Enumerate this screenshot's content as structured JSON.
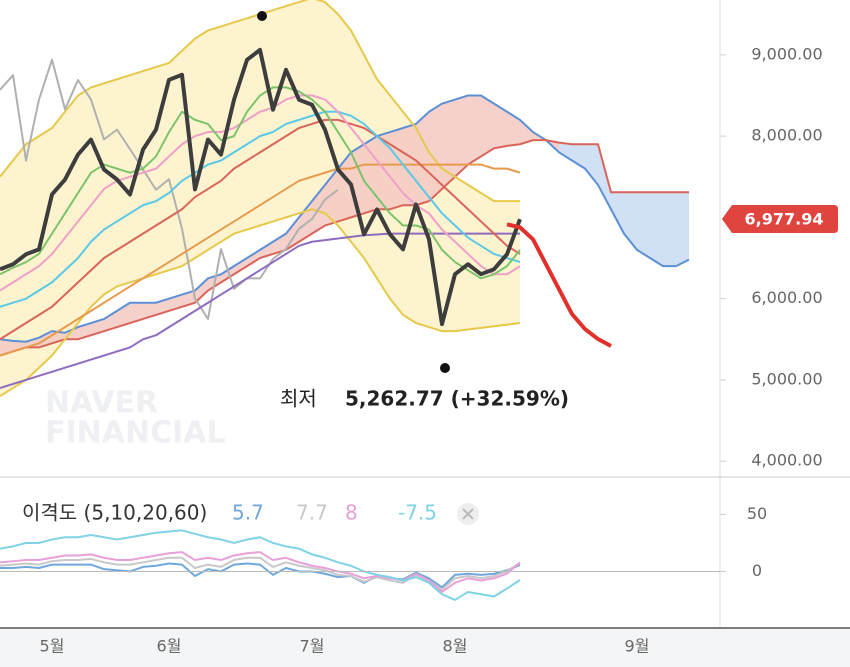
{
  "chart_data": [
    {
      "type": "line",
      "categories": [
        null,
        null,
        null,
        null,
        "5월",
        null,
        null,
        null,
        null,
        null,
        null,
        null,
        null,
        "6월",
        null,
        null,
        null,
        null,
        null,
        null,
        null,
        null,
        null,
        null,
        "7월",
        null,
        null,
        null,
        null,
        null,
        null,
        null,
        null,
        null,
        null,
        "8월",
        null,
        null,
        null,
        null,
        null,
        null,
        null,
        null,
        null,
        null,
        null,
        null,
        null,
        "9월",
        null,
        null,
        null,
        null,
        null,
        null
      ],
      "ylim": [
        3830,
        9675
      ],
      "yticks": [
        {
          "value": 4000,
          "label": "4,000.00"
        },
        {
          "value": 5000,
          "label": "5,000.00"
        },
        {
          "value": 6000,
          "label": "6,000.00"
        },
        {
          "value": 8000,
          "label": "8,000.00"
        },
        {
          "value": 9000,
          "label": "9,000.00"
        }
      ],
      "bollinger": {
        "color": "#e6c94a",
        "fill": "#fdf4cf",
        "upper": [
          7500,
          7700,
          7900,
          8000,
          8100,
          8300,
          8500,
          8600,
          8650,
          8700,
          8750,
          8800,
          8850,
          8900,
          9050,
          9200,
          9300,
          9350,
          9400,
          9450,
          9500,
          9550,
          9600,
          9650,
          9700,
          9650,
          9500,
          9300,
          9000,
          8700,
          8500,
          8300,
          8100,
          7800,
          7600,
          7500,
          7400,
          7300,
          7200,
          7200,
          7200,
          null,
          null,
          null,
          null,
          null,
          null,
          null,
          null,
          null,
          null,
          null,
          null,
          null,
          null,
          null
        ],
        "lower": [
          4800,
          4900,
          5000,
          5150,
          5300,
          5500,
          5700,
          5900,
          6050,
          6150,
          6200,
          6250,
          6300,
          6350,
          6400,
          6500,
          6600,
          6700,
          6800,
          6850,
          6900,
          6950,
          7000,
          7050,
          7100,
          7050,
          6900,
          6700,
          6500,
          6250,
          6000,
          5800,
          5700,
          5650,
          5600,
          5600,
          5620,
          5640,
          5660,
          5680,
          5700,
          null,
          null,
          null,
          null,
          null,
          null,
          null,
          null,
          null,
          null,
          null,
          null,
          null,
          null,
          null
        ]
      },
      "cloud": {
        "up_color": "#f4c9c3",
        "down_color": "#c8dcf5",
        "span_a": {
          "color": "#5b8fd6",
          "values": [
            5500,
            5480,
            5470,
            5520,
            5600,
            5580,
            5650,
            5700,
            5750,
            5850,
            5950,
            5950,
            5950,
            6000,
            6050,
            6100,
            6250,
            6300,
            6400,
            6500,
            6600,
            6700,
            6800,
            7000,
            7200,
            7400,
            7600,
            7800,
            7900,
            8000,
            8050,
            8100,
            8150,
            8300,
            8400,
            8450,
            8500,
            8500,
            8400,
            8300,
            8200,
            8050,
            7950,
            7800,
            7700,
            7600,
            7400,
            7100,
            6800,
            6600,
            6500,
            6400,
            6400,
            6480,
            null,
            null
          ]
        },
        "span_b": {
          "color": "#d9645a",
          "values": [
            5300,
            5350,
            5400,
            5400,
            5450,
            5500,
            5500,
            5550,
            5600,
            5650,
            5700,
            5750,
            5800,
            5850,
            5900,
            5950,
            6100,
            6200,
            6300,
            6400,
            6500,
            6550,
            6600,
            6700,
            6800,
            6900,
            6950,
            7000,
            7050,
            7100,
            7100,
            7150,
            7150,
            7200,
            7350,
            7500,
            7650,
            7750,
            7850,
            7880,
            7900,
            7950,
            7950,
            7920,
            7900,
            7900,
            7900,
            7310,
            7310,
            7310,
            7310,
            7310,
            7310,
            7310,
            null,
            null
          ]
        }
      },
      "series": [
        {
          "color": "#b0b0b0",
          "width": 2,
          "values": [
            8570,
            8750,
            7700,
            8450,
            8940,
            8330,
            8690,
            8450,
            7960,
            8080,
            7840,
            7590,
            7340,
            7470,
            6860,
            6000,
            5750,
            6610,
            6120,
            6250,
            6250,
            6490,
            6610,
            6860,
            6980,
            7220,
            7340,
            null,
            null,
            null,
            null,
            null,
            null,
            null,
            null,
            null,
            null,
            null,
            null,
            null,
            null,
            null,
            null,
            null,
            null,
            null,
            null,
            null,
            null,
            null,
            null,
            null,
            null,
            null,
            null,
            null
          ]
        },
        {
          "color": "#8e6bbf",
          "width": 2,
          "values": [
            4900,
            4950,
            5000,
            5050,
            5100,
            5150,
            5200,
            5250,
            5300,
            5350,
            5400,
            5500,
            5550,
            5650,
            5750,
            5850,
            5950,
            6050,
            6150,
            6250,
            6350,
            6450,
            6550,
            6650,
            6700,
            6720,
            6740,
            6760,
            6780,
            6790,
            6800,
            6800,
            6800,
            6800,
            6800,
            6800,
            6800,
            6800,
            6800,
            6800,
            6800,
            null,
            null,
            null,
            null,
            null,
            null,
            null,
            null,
            null,
            null,
            null,
            null,
            null,
            null,
            null
          ]
        },
        {
          "color": "#e89a4c",
          "width": 2,
          "values": [
            5300,
            5350,
            5400,
            5450,
            5550,
            5650,
            5750,
            5850,
            5950,
            6050,
            6150,
            6250,
            6350,
            6450,
            6550,
            6650,
            6750,
            6850,
            6950,
            7050,
            7150,
            7250,
            7350,
            7450,
            7500,
            7550,
            7600,
            7600,
            7650,
            7650,
            7650,
            7650,
            7650,
            7650,
            7650,
            7650,
            7650,
            7650,
            7600,
            7600,
            7550,
            null,
            null,
            null,
            null,
            null,
            null,
            null,
            null,
            null,
            null,
            null,
            null,
            null,
            null,
            null
          ]
        },
        {
          "color": "#d9645a",
          "width": 2,
          "values": [
            5500,
            5600,
            5700,
            5800,
            5900,
            6050,
            6200,
            6350,
            6500,
            6600,
            6700,
            6800,
            6900,
            7000,
            7100,
            7250,
            7350,
            7450,
            7600,
            7700,
            7800,
            7900,
            8000,
            8100,
            8150,
            8200,
            8200,
            8150,
            8100,
            8000,
            7900,
            7800,
            7700,
            7550,
            7400,
            7250,
            7100,
            6950,
            6800,
            6650,
            6550,
            null,
            null,
            null,
            null,
            null,
            null,
            null,
            null,
            null,
            null,
            null,
            null,
            null,
            null,
            null
          ]
        },
        {
          "color": "#5bc8e8",
          "width": 2,
          "values": [
            5900,
            5950,
            6000,
            6100,
            6200,
            6350,
            6500,
            6700,
            6850,
            6950,
            7050,
            7150,
            7200,
            7300,
            7450,
            7550,
            7650,
            7700,
            7800,
            7900,
            8000,
            8050,
            8150,
            8200,
            8250,
            8300,
            8300,
            8250,
            8150,
            8000,
            7850,
            7650,
            7450,
            7250,
            7050,
            6900,
            6750,
            6650,
            6550,
            6500,
            6450,
            null,
            null,
            null,
            null,
            null,
            null,
            null,
            null,
            null,
            null,
            null,
            null,
            null,
            null,
            null
          ]
        },
        {
          "color": "#f0a0c8",
          "width": 2,
          "values": [
            6100,
            6200,
            6300,
            6400,
            6550,
            6750,
            6950,
            7150,
            7350,
            7450,
            7500,
            7550,
            7600,
            7750,
            7900,
            8000,
            8050,
            8050,
            8100,
            8200,
            8300,
            8350,
            8450,
            8500,
            8500,
            8450,
            8300,
            8100,
            7900,
            7700,
            7500,
            7300,
            7150,
            7050,
            6850,
            6700,
            6550,
            6400,
            6300,
            6300,
            6400,
            null,
            null,
            null,
            null,
            null,
            null,
            null,
            null,
            null,
            null,
            null,
            null,
            null,
            null,
            null
          ]
        },
        {
          "color": "#7cc36b",
          "width": 2,
          "values": [
            6300,
            6380,
            6450,
            6550,
            6800,
            7050,
            7300,
            7550,
            7650,
            7600,
            7550,
            7600,
            7750,
            8050,
            8300,
            8200,
            8150,
            7950,
            8000,
            8300,
            8500,
            8600,
            8600,
            8550,
            8450,
            8300,
            8050,
            7800,
            7450,
            7250,
            7050,
            6900,
            6900,
            6850,
            6600,
            6450,
            6350,
            6250,
            6300,
            6400,
            6600,
            null,
            null,
            null,
            null,
            null,
            null,
            null,
            null,
            null,
            null,
            null,
            null,
            null,
            null,
            null
          ]
        },
        {
          "color": "#3d3d3d",
          "width": 4,
          "values": [
            6362,
            6423,
            6546,
            6607,
            7282,
            7466,
            7773,
            7957,
            7589,
            7466,
            7282,
            7834,
            8080,
            8693,
            8755,
            7344,
            7957,
            7773,
            8448,
            8939,
            9061,
            8325,
            8816,
            8448,
            8386,
            8080,
            7589,
            7405,
            6791,
            7098,
            6791,
            6607,
            7159,
            6730,
            5687,
            6301,
            6423,
            6301,
            6362,
            6546,
            6978,
            null,
            null,
            null,
            null,
            null,
            null,
            null,
            null,
            null,
            null,
            null,
            null,
            null,
            null,
            null
          ]
        },
        {
          "color": "#e0312b",
          "width": 4,
          "values": [
            null,
            null,
            null,
            null,
            null,
            null,
            null,
            null,
            null,
            null,
            null,
            null,
            null,
            null,
            null,
            null,
            null,
            null,
            null,
            null,
            null,
            null,
            null,
            null,
            null,
            null,
            null,
            null,
            null,
            null,
            null,
            null,
            null,
            null,
            null,
            null,
            null,
            null,
            null,
            6914,
            6877,
            6730,
            6423,
            6117,
            5810,
            5626,
            5503,
            5417,
            null,
            null,
            null,
            null,
            null,
            null,
            null,
            null
          ]
        }
      ],
      "last_price_label": "6,977.94",
      "last_price_color": "#e0443e",
      "annotation": {
        "label": "최저",
        "text": "5,262.77 (+32.59%)"
      },
      "watermark": [
        "NAVER",
        "FINANCIAL"
      ]
    },
    {
      "type": "line",
      "title": "이격도 (5,10,20,60)",
      "ylim": [
        -47,
        82
      ],
      "yticks": [
        0,
        50
      ],
      "series": [
        {
          "color": "#6fa8dc",
          "values": [
            3,
            3,
            4,
            3,
            6,
            6,
            6,
            6,
            2,
            1,
            0,
            4,
            5,
            7,
            6,
            -4,
            2,
            0,
            6,
            7,
            6,
            -3,
            3,
            0,
            0,
            -2,
            -5,
            -4,
            -10,
            -4,
            -6,
            -7,
            -1,
            -6,
            -14,
            -3,
            -2,
            -3,
            -2,
            1,
            5.7
          ]
        },
        {
          "color": "#c8c8c8",
          "values": [
            5,
            6,
            7,
            6,
            9,
            10,
            10,
            11,
            8,
            6,
            6,
            8,
            10,
            12,
            12,
            3,
            6,
            4,
            10,
            12,
            12,
            4,
            8,
            5,
            3,
            1,
            -3,
            -4,
            -9,
            -5,
            -8,
            -10,
            -3,
            -8,
            -16,
            -6,
            -4,
            -6,
            -4,
            0,
            7.7
          ]
        },
        {
          "color": "#e8a0d8",
          "values": [
            8,
            9,
            10,
            10,
            12,
            14,
            14,
            15,
            12,
            10,
            10,
            12,
            14,
            16,
            17,
            10,
            12,
            10,
            14,
            16,
            17,
            10,
            12,
            8,
            5,
            3,
            0,
            -2,
            -6,
            -4,
            -6,
            -8,
            -2,
            -8,
            -18,
            -10,
            -6,
            -8,
            -6,
            -2,
            8.0
          ]
        },
        {
          "color": "#7fd3e6",
          "values": [
            20,
            22,
            25,
            25,
            28,
            30,
            30,
            32,
            30,
            28,
            30,
            32,
            34,
            35,
            36,
            33,
            30,
            28,
            25,
            28,
            30,
            25,
            22,
            20,
            15,
            12,
            8,
            5,
            0,
            -3,
            -5,
            -8,
            -5,
            -10,
            -20,
            -25,
            -18,
            -20,
            -22,
            -15,
            -7.5
          ]
        }
      ]
    }
  ]
}
